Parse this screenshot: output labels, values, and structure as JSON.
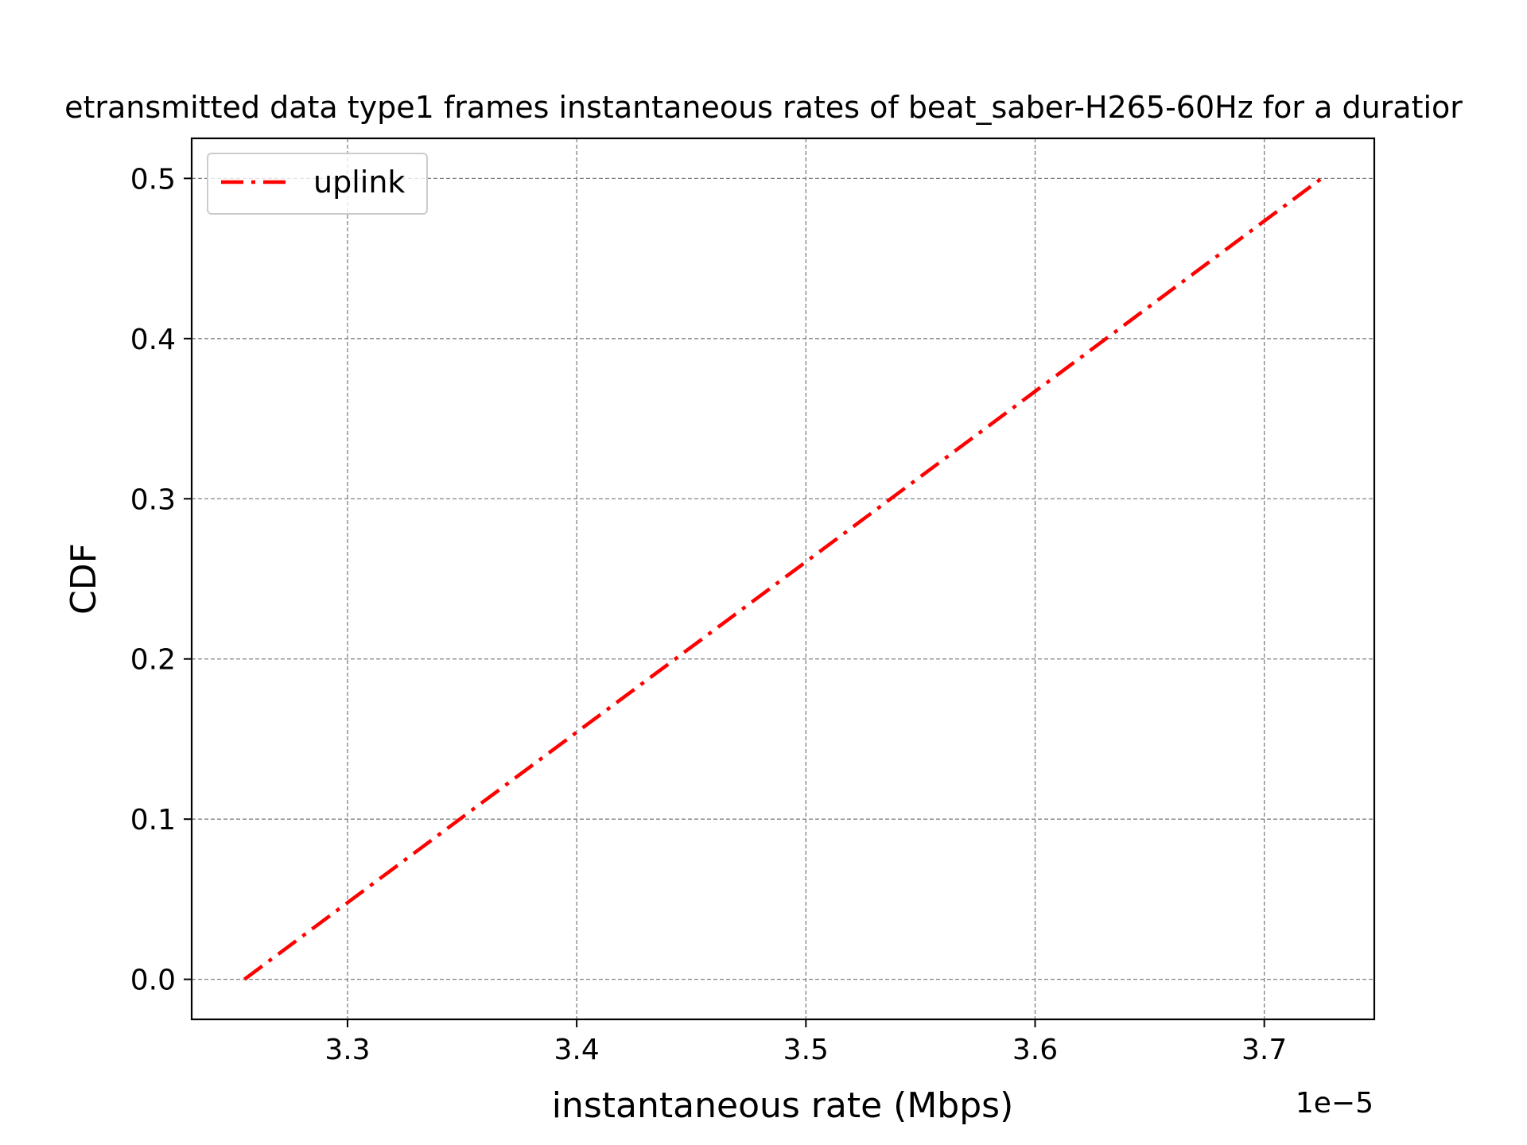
{
  "chart_data": {
    "type": "line",
    "title": "etransmitted data type1 frames instantaneous rates of beat_saber-H265-60Hz for a duratior",
    "xlabel": "instantaneous rate (Mbps)",
    "ylabel": "CDF",
    "x_offset_label": "1e−5",
    "xlim": [
      3.232,
      3.748
    ],
    "ylim": [
      -0.025,
      0.525
    ],
    "x_ticks": [
      3.3,
      3.4,
      3.5,
      3.6,
      3.7
    ],
    "x_tick_labels": [
      "3.3",
      "3.4",
      "3.5",
      "3.6",
      "3.7"
    ],
    "y_ticks": [
      0.0,
      0.1,
      0.2,
      0.3,
      0.4,
      0.5
    ],
    "y_tick_labels": [
      "0.0",
      "0.1",
      "0.2",
      "0.3",
      "0.4",
      "0.5"
    ],
    "grid": true,
    "legend_position": "upper-left",
    "series": [
      {
        "name": "uplink",
        "color": "#ff0000",
        "line_style": "dash-dot",
        "x": [
          3.255,
          3.725
        ],
        "y": [
          0.0,
          0.5
        ]
      }
    ]
  }
}
